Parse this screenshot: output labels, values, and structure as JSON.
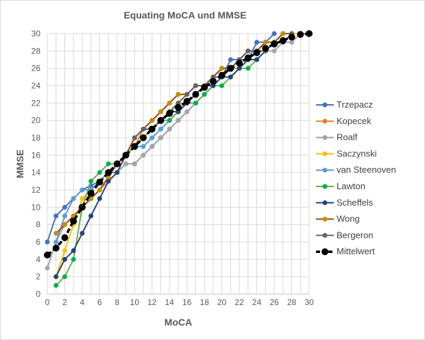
{
  "chart_data": {
    "type": "line",
    "title": "Equating MoCA und MMSE",
    "xlabel": "MoCA",
    "ylabel": "MMSE",
    "xlim": [
      0,
      30
    ],
    "ylim": [
      0,
      30
    ],
    "xticks": [
      0,
      2,
      4,
      6,
      8,
      10,
      12,
      14,
      16,
      18,
      20,
      22,
      24,
      26,
      28,
      30
    ],
    "yticks": [
      0,
      2,
      4,
      6,
      8,
      10,
      12,
      14,
      16,
      18,
      20,
      22,
      24,
      26,
      28,
      30
    ],
    "grid": true,
    "legend": "right",
    "series": [
      {
        "name": "Trzepacz",
        "color": "#4472C4",
        "x0": 0,
        "values": [
          6,
          9,
          10,
          11,
          12,
          12.5,
          13,
          14,
          14,
          15,
          15,
          16,
          17,
          18,
          19,
          20,
          21,
          22,
          23,
          24,
          25,
          27,
          27,
          27,
          29,
          29,
          30
        ]
      },
      {
        "name": "Kopecek",
        "color": "#ED7D31",
        "x0": 5,
        "values": [
          11,
          12,
          13.5,
          15,
          16,
          17,
          19,
          20,
          21,
          22,
          23,
          23,
          24,
          24,
          25,
          26,
          26,
          26,
          27,
          28,
          29,
          29,
          30,
          30
        ]
      },
      {
        "name": "Roalf",
        "color": "#A5A5A5",
        "x0": 0,
        "values": [
          3,
          6,
          8,
          9,
          10,
          11,
          12,
          13,
          14,
          15,
          15,
          16,
          17,
          18,
          19,
          20,
          21,
          22,
          23,
          24,
          25,
          26,
          27,
          28,
          28,
          28,
          28,
          29,
          29,
          30,
          30
        ]
      },
      {
        "name": "Saczynski",
        "color": "#FFC000",
        "x0": 1,
        "values": [
          2,
          5,
          8,
          11,
          12,
          13,
          14,
          15,
          16,
          17,
          18,
          19,
          20,
          21,
          22,
          22,
          23,
          24,
          25,
          25,
          26,
          27,
          27,
          28,
          29,
          29,
          30,
          30,
          30
        ]
      },
      {
        "name": "van Steenoven",
        "color": "#5B9BD5",
        "x0": 1,
        "values": [
          6,
          9,
          11,
          12,
          12,
          13,
          14,
          15,
          16,
          17,
          17,
          18,
          19,
          20,
          21,
          22,
          23,
          24,
          25,
          26,
          26,
          27,
          27,
          28,
          29,
          29,
          30
        ]
      },
      {
        "name": "Lawton",
        "color": "#70AD47",
        "marker": "#00B050",
        "x0": 1,
        "values": [
          1,
          2,
          4,
          10,
          13,
          14,
          15,
          15,
          16,
          17,
          18,
          19,
          20,
          20,
          21,
          22,
          22,
          23,
          24,
          24,
          25,
          26,
          26,
          27,
          28,
          29
        ]
      },
      {
        "name": "Scheffels",
        "color": "#264478",
        "x0": 1,
        "values": [
          2,
          4,
          5,
          7,
          9,
          11,
          13,
          14,
          16,
          18,
          19,
          19,
          20,
          21,
          21,
          22,
          23,
          24,
          24,
          25,
          25,
          26,
          27,
          27,
          28
        ]
      },
      {
        "name": "Wong",
        "color": "#9E480E",
        "marker": "#BF9000",
        "x0": 1,
        "values": [
          7,
          8,
          9,
          10,
          11,
          12,
          13.5,
          15,
          16,
          18,
          19,
          20,
          21,
          22,
          23,
          23,
          24,
          24,
          25,
          26,
          26,
          27,
          28,
          28,
          29,
          29,
          30,
          30
        ]
      },
      {
        "name": "Bergeron",
        "color": "#636363",
        "x0": 10,
        "values": [
          18,
          19,
          19,
          20,
          21,
          22,
          23,
          24,
          24,
          25,
          25,
          26,
          27,
          28,
          28,
          28,
          29,
          29,
          30
        ]
      },
      {
        "name": "Mittelwert",
        "color": "#000000",
        "dashed": true,
        "x0": 0,
        "values": [
          4.5,
          5.3,
          6.5,
          8.4,
          10,
          11.6,
          12.9,
          14,
          15,
          16,
          17,
          18,
          19,
          20,
          20.8,
          21.5,
          22.2,
          23,
          23.8,
          24.5,
          25.2,
          26,
          26.6,
          27.2,
          27.8,
          28.3,
          28.8,
          29.2,
          29.6,
          29.9,
          30
        ]
      }
    ]
  }
}
